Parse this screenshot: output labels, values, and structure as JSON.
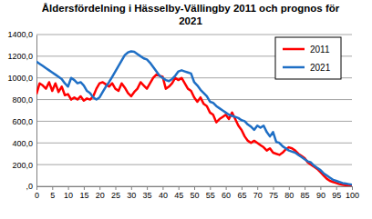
{
  "chart_data": {
    "type": "line",
    "title": "Åldersfördelning i Hässelby-Vällingby 2011 och prognos för 2021",
    "x": [
      0,
      1,
      2,
      3,
      4,
      5,
      6,
      7,
      8,
      9,
      10,
      11,
      12,
      13,
      14,
      15,
      16,
      17,
      18,
      19,
      20,
      21,
      22,
      23,
      24,
      25,
      26,
      27,
      28,
      29,
      30,
      31,
      32,
      33,
      34,
      35,
      36,
      37,
      38,
      39,
      40,
      41,
      42,
      43,
      44,
      45,
      46,
      47,
      48,
      49,
      50,
      51,
      52,
      53,
      54,
      55,
      56,
      57,
      58,
      59,
      60,
      61,
      62,
      63,
      64,
      65,
      66,
      67,
      68,
      69,
      70,
      71,
      72,
      73,
      74,
      75,
      76,
      77,
      78,
      79,
      80,
      81,
      82,
      83,
      84,
      85,
      86,
      87,
      88,
      89,
      90,
      91,
      92,
      93,
      94,
      95,
      96,
      97,
      98,
      99,
      100
    ],
    "series": [
      {
        "name": "2011",
        "color": "#ff0000",
        "values": [
          850,
          950,
          930,
          900,
          960,
          880,
          950,
          870,
          920,
          840,
          850,
          800,
          820,
          800,
          830,
          790,
          810,
          800,
          830,
          900,
          950,
          960,
          940,
          920,
          950,
          900,
          880,
          950,
          910,
          860,
          830,
          870,
          900,
          960,
          930,
          900,
          950,
          1000,
          1030,
          1020,
          1010,
          900,
          920,
          950,
          1000,
          980,
          1000,
          950,
          900,
          880,
          820,
          780,
          820,
          760,
          740,
          680,
          660,
          590,
          620,
          640,
          660,
          620,
          680,
          620,
          560,
          520,
          460,
          420,
          400,
          420,
          400,
          380,
          360,
          330,
          350,
          310,
          300,
          290,
          310,
          340,
          360,
          350,
          330,
          300,
          280,
          260,
          220,
          200,
          180,
          160,
          130,
          100,
          70,
          50,
          40,
          30,
          20,
          15,
          10,
          5,
          3
        ]
      },
      {
        "name": "2021",
        "color": "#1f6fc5",
        "values": [
          1150,
          1130,
          1110,
          1090,
          1070,
          1050,
          1030,
          1010,
          990,
          950,
          920,
          1000,
          980,
          950,
          960,
          930,
          880,
          860,
          820,
          800,
          820,
          870,
          920,
          960,
          1010,
          1060,
          1110,
          1160,
          1210,
          1235,
          1245,
          1240,
          1220,
          1200,
          1180,
          1170,
          1140,
          1100,
          1060,
          1020,
          1000,
          980,
          970,
          990,
          1020,
          1060,
          1070,
          1060,
          1050,
          1040,
          960,
          930,
          890,
          860,
          830,
          780,
          770,
          740,
          720,
          700,
          680,
          660,
          650,
          640,
          630,
          610,
          600,
          570,
          550,
          520,
          560,
          540,
          560,
          500,
          460,
          500,
          410,
          400,
          370,
          350,
          330,
          320,
          310,
          290,
          270,
          250,
          230,
          220,
          190,
          170,
          150,
          120,
          100,
          80,
          60,
          50,
          40,
          30,
          25,
          20,
          15
        ]
      }
    ],
    "xlim": [
      0,
      100
    ],
    "xticks": [
      0,
      5,
      10,
      15,
      20,
      25,
      30,
      35,
      40,
      45,
      50,
      55,
      60,
      65,
      70,
      75,
      80,
      85,
      90,
      95,
      100
    ],
    "ylim": [
      0,
      1400
    ],
    "yticks": [
      {
        "value": 0,
        "label": ",0"
      },
      {
        "value": 200,
        "label": "200,0"
      },
      {
        "value": 400,
        "label": "400,0"
      },
      {
        "value": 600,
        "label": "600,0"
      },
      {
        "value": 800,
        "label": "800,0"
      },
      {
        "value": 1000,
        "label": "1000,0"
      },
      {
        "value": 1200,
        "label": "1200,0"
      },
      {
        "value": 1400,
        "label": "1400,0"
      }
    ],
    "grid": true,
    "legend": "upper right"
  }
}
